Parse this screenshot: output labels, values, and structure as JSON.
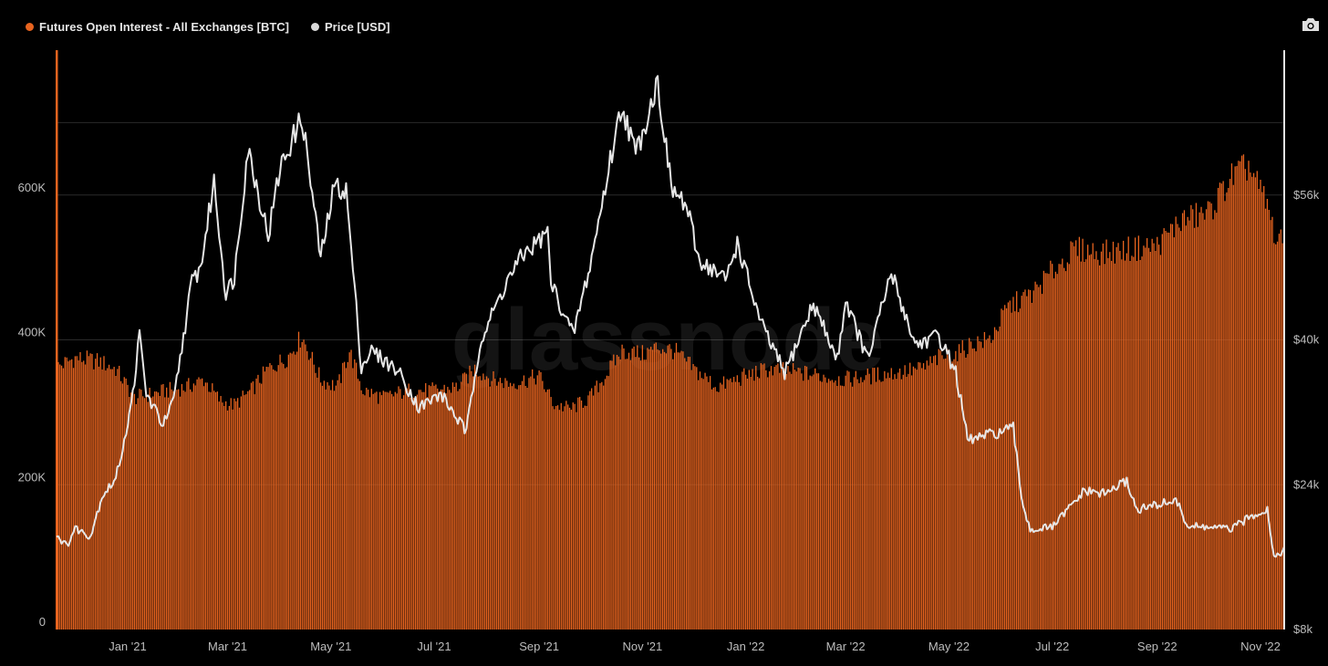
{
  "legend": {
    "items": [
      {
        "label": "Futures Open Interest - All Exchanges [BTC]",
        "color": "#e8641f"
      },
      {
        "label": "Price [USD]",
        "color": "#d9d9d9"
      }
    ]
  },
  "watermark": "glassnode",
  "toolbar": {
    "camera_icon": "camera-icon"
  },
  "chart_data": {
    "type": "bar+line",
    "x_range": [
      "2020-11-20",
      "2022-11-15"
    ],
    "x_tick_labels": [
      "Jan '21",
      "Mar '21",
      "May '21",
      "Jul '21",
      "Sep '21",
      "Nov '21",
      "Jan '22",
      "Mar '22",
      "May '22",
      "Jul '22",
      "Sep '22",
      "Nov '22"
    ],
    "x_tick_dates": [
      "2021-01-01",
      "2021-03-01",
      "2021-05-01",
      "2021-07-01",
      "2021-09-01",
      "2021-11-01",
      "2022-01-01",
      "2022-03-01",
      "2022-05-01",
      "2022-07-01",
      "2022-09-01",
      "2022-11-01"
    ],
    "left_axis": {
      "label": "",
      "range": [
        0,
        800000
      ],
      "ticks": [
        0,
        200000,
        400000,
        600000
      ],
      "tick_labels": [
        "0",
        "200K",
        "400K",
        "600K"
      ]
    },
    "right_axis": {
      "label": "",
      "range": [
        8000,
        72000
      ],
      "ticks": [
        8000,
        24000,
        40000,
        56000
      ],
      "tick_labels": [
        "$8k",
        "$24k",
        "$40k",
        "$56k"
      ]
    },
    "grid": true,
    "series": [
      {
        "name": "Futures Open Interest - All Exchanges [BTC]",
        "kind": "bar",
        "axis": "left",
        "color": "#e8641f",
        "points": [
          [
            "2020-11-20",
            362000
          ],
          [
            "2020-12-01",
            375000
          ],
          [
            "2020-12-15",
            370000
          ],
          [
            "2020-12-25",
            360000
          ],
          [
            "2021-01-05",
            320000
          ],
          [
            "2021-01-15",
            325000
          ],
          [
            "2021-01-25",
            330000
          ],
          [
            "2021-02-05",
            335000
          ],
          [
            "2021-02-15",
            345000
          ],
          [
            "2021-02-25",
            315000
          ],
          [
            "2021-03-05",
            310000
          ],
          [
            "2021-03-15",
            330000
          ],
          [
            "2021-03-25",
            360000
          ],
          [
            "2021-04-05",
            375000
          ],
          [
            "2021-04-14",
            405000
          ],
          [
            "2021-04-25",
            345000
          ],
          [
            "2021-05-05",
            335000
          ],
          [
            "2021-05-12",
            385000
          ],
          [
            "2021-05-20",
            330000
          ],
          [
            "2021-06-01",
            320000
          ],
          [
            "2021-06-15",
            330000
          ],
          [
            "2021-07-01",
            330000
          ],
          [
            "2021-07-15",
            335000
          ],
          [
            "2021-07-25",
            360000
          ],
          [
            "2021-08-05",
            345000
          ],
          [
            "2021-08-15",
            340000
          ],
          [
            "2021-08-25",
            345000
          ],
          [
            "2021-09-01",
            350000
          ],
          [
            "2021-09-10",
            310000
          ],
          [
            "2021-09-20",
            305000
          ],
          [
            "2021-10-01",
            320000
          ],
          [
            "2021-10-10",
            350000
          ],
          [
            "2021-10-20",
            385000
          ],
          [
            "2021-11-01",
            380000
          ],
          [
            "2021-11-10",
            390000
          ],
          [
            "2021-11-20",
            385000
          ],
          [
            "2021-12-01",
            360000
          ],
          [
            "2021-12-15",
            335000
          ],
          [
            "2022-01-01",
            350000
          ],
          [
            "2022-01-15",
            360000
          ],
          [
            "2022-02-01",
            355000
          ],
          [
            "2022-02-15",
            350000
          ],
          [
            "2022-03-01",
            345000
          ],
          [
            "2022-03-15",
            350000
          ],
          [
            "2022-04-01",
            355000
          ],
          [
            "2022-04-15",
            360000
          ],
          [
            "2022-04-25",
            375000
          ],
          [
            "2022-05-05",
            380000
          ],
          [
            "2022-05-15",
            395000
          ],
          [
            "2022-05-25",
            400000
          ],
          [
            "2022-06-05",
            445000
          ],
          [
            "2022-06-20",
            465000
          ],
          [
            "2022-07-01",
            495000
          ],
          [
            "2022-07-15",
            525000
          ],
          [
            "2022-08-01",
            520000
          ],
          [
            "2022-08-15",
            525000
          ],
          [
            "2022-09-01",
            530000
          ],
          [
            "2022-09-15",
            565000
          ],
          [
            "2022-10-01",
            575000
          ],
          [
            "2022-10-15",
            625000
          ],
          [
            "2022-10-25",
            640000
          ],
          [
            "2022-11-05",
            585000
          ],
          [
            "2022-11-10",
            540000
          ],
          [
            "2022-11-15",
            530000
          ]
        ]
      },
      {
        "name": "Price [USD]",
        "kind": "line",
        "axis": "right",
        "color": "#e6e6e6",
        "points": [
          [
            "2020-11-20",
            18500
          ],
          [
            "2020-11-26",
            17200
          ],
          [
            "2020-12-01",
            19200
          ],
          [
            "2020-12-10",
            18300
          ],
          [
            "2020-12-17",
            22800
          ],
          [
            "2020-12-25",
            24600
          ],
          [
            "2021-01-03",
            32500
          ],
          [
            "2021-01-08",
            40500
          ],
          [
            "2021-01-12",
            34000
          ],
          [
            "2021-01-22",
            30600
          ],
          [
            "2021-01-28",
            33100
          ],
          [
            "2021-02-08",
            46500
          ],
          [
            "2021-02-13",
            47900
          ],
          [
            "2021-02-21",
            57500
          ],
          [
            "2021-02-28",
            45000
          ],
          [
            "2021-03-05",
            47000
          ],
          [
            "2021-03-13",
            61200
          ],
          [
            "2021-03-25",
            51500
          ],
          [
            "2021-04-01",
            59000
          ],
          [
            "2021-04-14",
            64600
          ],
          [
            "2021-04-25",
            49000
          ],
          [
            "2021-05-03",
            57000
          ],
          [
            "2021-05-10",
            56500
          ],
          [
            "2021-05-19",
            37000
          ],
          [
            "2021-05-25",
            38800
          ],
          [
            "2021-06-10",
            36500
          ],
          [
            "2021-06-22",
            32500
          ],
          [
            "2021-07-05",
            34000
          ],
          [
            "2021-07-20",
            29800
          ],
          [
            "2021-07-28",
            39700
          ],
          [
            "2021-08-13",
            46500
          ],
          [
            "2021-08-23",
            49500
          ],
          [
            "2021-09-06",
            51800
          ],
          [
            "2021-09-08",
            46300
          ],
          [
            "2021-09-21",
            40500
          ],
          [
            "2021-10-01",
            48100
          ],
          [
            "2021-10-15",
            61700
          ],
          [
            "2021-10-20",
            66000
          ],
          [
            "2021-10-28",
            60500
          ],
          [
            "2021-11-10",
            68500
          ],
          [
            "2021-11-18",
            56800
          ],
          [
            "2021-11-27",
            54700
          ],
          [
            "2021-12-04",
            49000
          ],
          [
            "2021-12-20",
            46600
          ],
          [
            "2021-12-27",
            50700
          ],
          [
            "2022-01-10",
            41800
          ],
          [
            "2022-01-24",
            36300
          ],
          [
            "2022-02-10",
            44000
          ],
          [
            "2022-02-24",
            37800
          ],
          [
            "2022-03-01",
            44400
          ],
          [
            "2022-03-14",
            37800
          ],
          [
            "2022-03-28",
            47400
          ],
          [
            "2022-04-11",
            39500
          ],
          [
            "2022-04-25",
            40400
          ],
          [
            "2022-05-05",
            36500
          ],
          [
            "2022-05-12",
            28900
          ],
          [
            "2022-05-25",
            29500
          ],
          [
            "2022-06-08",
            30200
          ],
          [
            "2022-06-13",
            22400
          ],
          [
            "2022-06-18",
            19000
          ],
          [
            "2022-07-01",
            19300
          ],
          [
            "2022-07-20",
            23300
          ],
          [
            "2022-08-01",
            23000
          ],
          [
            "2022-08-14",
            24400
          ],
          [
            "2022-08-20",
            21200
          ],
          [
            "2022-09-12",
            22300
          ],
          [
            "2022-09-19",
            19400
          ],
          [
            "2022-10-01",
            19300
          ],
          [
            "2022-10-15",
            19100
          ],
          [
            "2022-10-29",
            20800
          ],
          [
            "2022-11-05",
            21300
          ],
          [
            "2022-11-09",
            16000
          ],
          [
            "2022-11-15",
            16800
          ]
        ]
      }
    ]
  }
}
